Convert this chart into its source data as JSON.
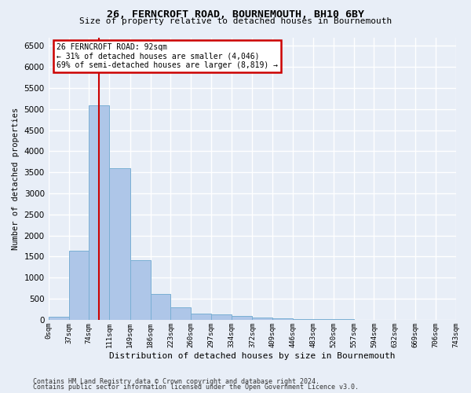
{
  "title1": "26, FERNCROFT ROAD, BOURNEMOUTH, BH10 6BY",
  "title2": "Size of property relative to detached houses in Bournemouth",
  "xlabel": "Distribution of detached houses by size in Bournemouth",
  "ylabel": "Number of detached properties",
  "footnote1": "Contains HM Land Registry data © Crown copyright and database right 2024.",
  "footnote2": "Contains public sector information licensed under the Open Government Licence v3.0.",
  "annotation_line1": "26 FERNCROFT ROAD: 92sqm",
  "annotation_line2": "← 31% of detached houses are smaller (4,046)",
  "annotation_line3": "69% of semi-detached houses are larger (8,819) →",
  "bar_color": "#aec6e8",
  "bar_edge_color": "#7aafd4",
  "vline_color": "#cc0000",
  "annotation_box_edge": "#cc0000",
  "background_color": "#e8eef7",
  "grid_color": "#ffffff",
  "bins": [
    0,
    37,
    74,
    111,
    149,
    186,
    223,
    260,
    297,
    334,
    372,
    409,
    446,
    483,
    520,
    557,
    594,
    632,
    669,
    706,
    743
  ],
  "bin_labels": [
    "0sqm",
    "37sqm",
    "74sqm",
    "111sqm",
    "149sqm",
    "186sqm",
    "223sqm",
    "260sqm",
    "297sqm",
    "334sqm",
    "372sqm",
    "409sqm",
    "446sqm",
    "483sqm",
    "520sqm",
    "557sqm",
    "594sqm",
    "632sqm",
    "669sqm",
    "706sqm",
    "743sqm"
  ],
  "values": [
    75,
    1640,
    5080,
    3600,
    1420,
    610,
    290,
    150,
    125,
    90,
    55,
    35,
    20,
    10,
    8,
    5,
    3,
    2,
    1,
    1
  ],
  "property_size": 92,
  "ylim": [
    0,
    6700
  ],
  "yticks": [
    0,
    500,
    1000,
    1500,
    2000,
    2500,
    3000,
    3500,
    4000,
    4500,
    5000,
    5500,
    6000,
    6500
  ]
}
